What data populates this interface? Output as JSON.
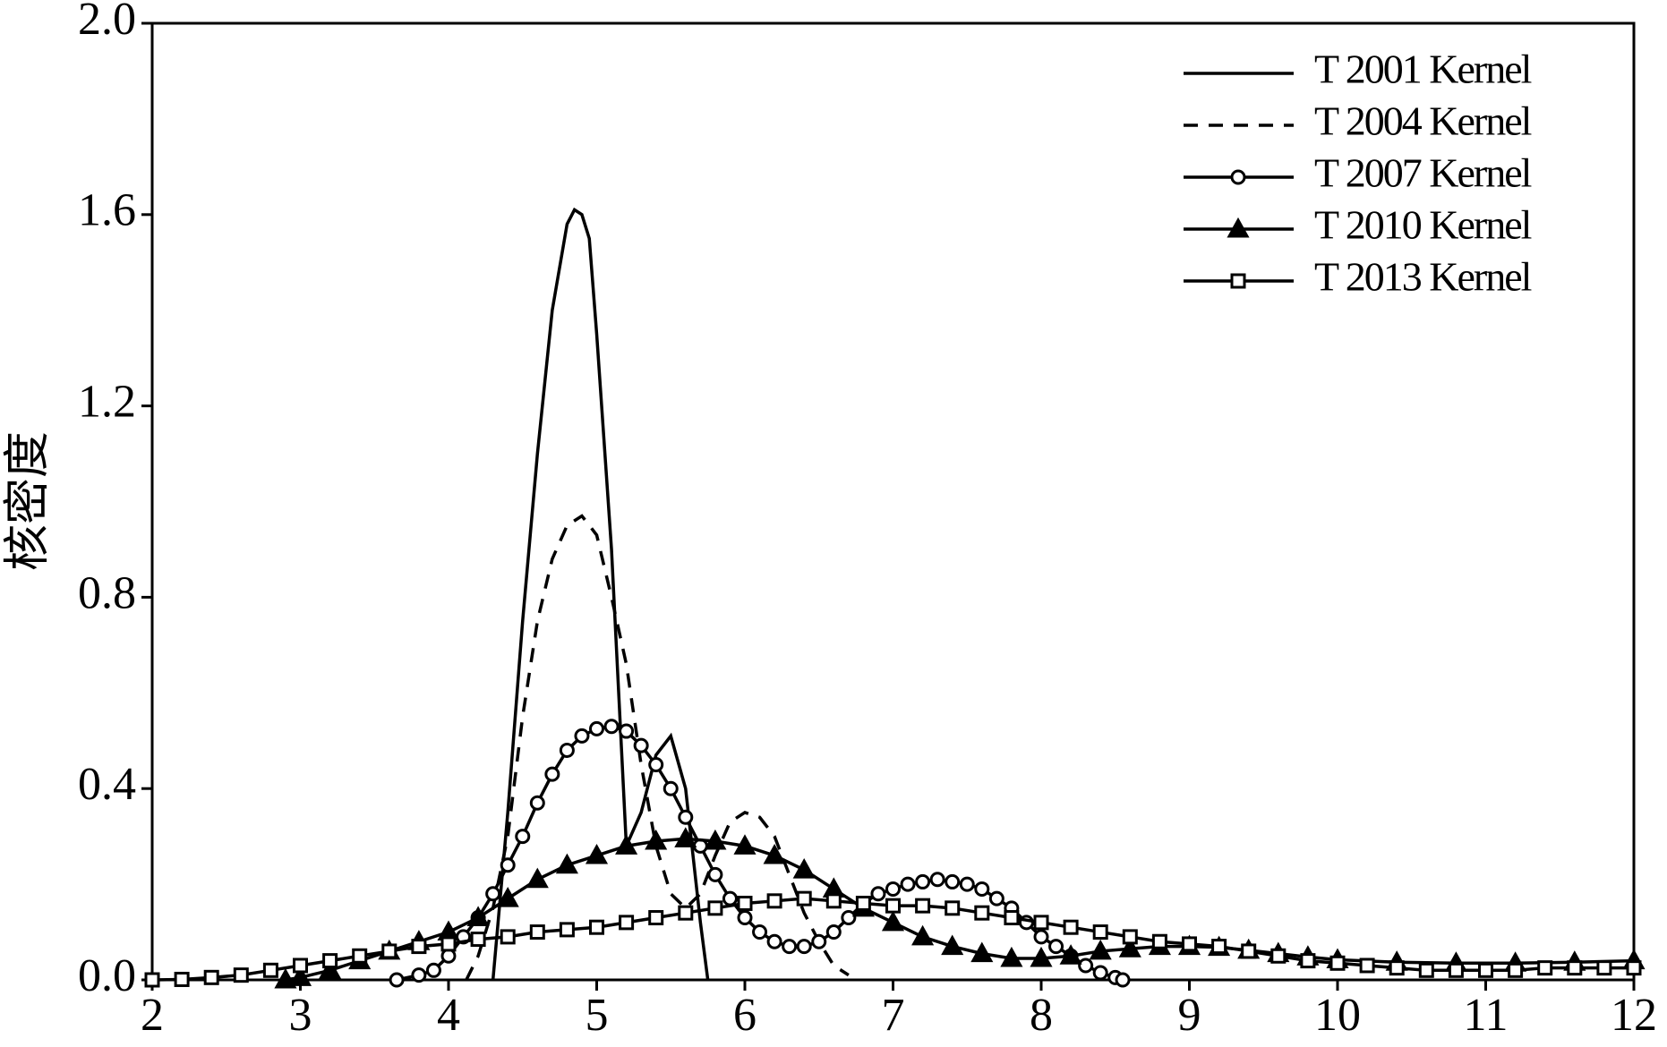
{
  "chart_data": {
    "type": "line",
    "y_label": "核密度",
    "xlim": [
      2,
      12
    ],
    "ylim": [
      0,
      2.0
    ],
    "xticks": [
      2,
      3,
      4,
      5,
      6,
      7,
      8,
      9,
      10,
      11,
      12
    ],
    "yticks": [
      {
        "value": 0,
        "label": "0.0"
      },
      {
        "value": 0.4,
        "label": "0.4"
      },
      {
        "value": 0.8,
        "label": "0.8"
      },
      {
        "value": 1.2,
        "label": "1.2"
      },
      {
        "value": 1.6,
        "label": "1.6"
      },
      {
        "value": 2.0,
        "label": "2.0"
      }
    ],
    "legend": "upper right",
    "series": [
      {
        "name": "T 2001 Kernel",
        "color": "#000000",
        "dash": false,
        "marker": "none",
        "x": [
          4.3,
          4.4,
          4.5,
          4.6,
          4.7,
          4.8,
          4.85,
          4.9,
          4.95,
          5.0,
          5.1,
          5.2,
          5.3,
          5.4,
          5.5,
          5.6,
          5.7,
          5.75
        ],
        "values": [
          0,
          0.35,
          0.75,
          1.1,
          1.4,
          1.58,
          1.61,
          1.6,
          1.55,
          1.35,
          0.9,
          0.28,
          0.35,
          0.47,
          0.51,
          0.4,
          0.12,
          0
        ]
      },
      {
        "name": "T 2004 Kernel",
        "color": "#000000",
        "dash": true,
        "marker": "none",
        "x": [
          4.12,
          4.2,
          4.3,
          4.4,
          4.5,
          4.6,
          4.7,
          4.8,
          4.9,
          5.0,
          5.1,
          5.2,
          5.3,
          5.4,
          5.5,
          5.6,
          5.7,
          5.8,
          5.9,
          6.0,
          6.1,
          6.2,
          6.3,
          6.4,
          6.5,
          6.6,
          6.7
        ],
        "values": [
          0,
          0.05,
          0.15,
          0.3,
          0.55,
          0.75,
          0.88,
          0.95,
          0.97,
          0.93,
          0.8,
          0.66,
          0.45,
          0.28,
          0.18,
          0.15,
          0.18,
          0.26,
          0.33,
          0.35,
          0.34,
          0.3,
          0.22,
          0.14,
          0.08,
          0.03,
          0.01
        ]
      },
      {
        "name": "T 2007 Kernel",
        "color": "#000000",
        "dash": false,
        "marker": "circle",
        "x": [
          3.65,
          3.8,
          3.9,
          4.0,
          4.1,
          4.2,
          4.3,
          4.4,
          4.5,
          4.6,
          4.7,
          4.8,
          4.9,
          5.0,
          5.1,
          5.2,
          5.3,
          5.4,
          5.5,
          5.6,
          5.7,
          5.8,
          5.9,
          6.0,
          6.1,
          6.2,
          6.3,
          6.4,
          6.5,
          6.6,
          6.7,
          6.8,
          6.9,
          7.0,
          7.1,
          7.2,
          7.3,
          7.4,
          7.5,
          7.6,
          7.7,
          7.8,
          7.9,
          8.0,
          8.1,
          8.2,
          8.3,
          8.4,
          8.5,
          8.55
        ],
        "values": [
          0,
          0.01,
          0.02,
          0.05,
          0.09,
          0.13,
          0.18,
          0.24,
          0.3,
          0.37,
          0.43,
          0.48,
          0.51,
          0.525,
          0.53,
          0.52,
          0.49,
          0.45,
          0.4,
          0.34,
          0.28,
          0.22,
          0.17,
          0.13,
          0.1,
          0.08,
          0.07,
          0.07,
          0.08,
          0.1,
          0.13,
          0.16,
          0.18,
          0.19,
          0.2,
          0.205,
          0.21,
          0.205,
          0.2,
          0.19,
          0.17,
          0.15,
          0.12,
          0.09,
          0.07,
          0.05,
          0.03,
          0.015,
          0.005,
          0
        ]
      },
      {
        "name": "T 2010 Kernel",
        "color": "#000000",
        "dash": false,
        "marker": "triangle",
        "x": [
          2.9,
          3.0,
          3.2,
          3.4,
          3.6,
          3.8,
          4.0,
          4.2,
          4.4,
          4.6,
          4.8,
          5.0,
          5.2,
          5.4,
          5.6,
          5.8,
          6.0,
          6.2,
          6.4,
          6.6,
          6.8,
          7.0,
          7.2,
          7.4,
          7.6,
          7.8,
          8.0,
          8.2,
          8.4,
          8.6,
          8.8,
          9.0,
          9.2,
          9.4,
          9.6,
          9.8,
          10.0,
          10.4,
          10.8,
          11.2,
          11.6,
          12.0
        ],
        "values": [
          0,
          0.005,
          0.02,
          0.04,
          0.06,
          0.08,
          0.1,
          0.13,
          0.17,
          0.21,
          0.24,
          0.26,
          0.28,
          0.29,
          0.295,
          0.29,
          0.28,
          0.26,
          0.23,
          0.19,
          0.15,
          0.12,
          0.09,
          0.07,
          0.055,
          0.045,
          0.045,
          0.05,
          0.06,
          0.065,
          0.07,
          0.07,
          0.068,
          0.062,
          0.055,
          0.048,
          0.042,
          0.037,
          0.035,
          0.035,
          0.037,
          0.04
        ]
      },
      {
        "name": "T 2013 Kernel",
        "color": "#000000",
        "dash": false,
        "marker": "square",
        "x": [
          2.0,
          2.2,
          2.4,
          2.6,
          2.8,
          3.0,
          3.2,
          3.4,
          3.6,
          3.8,
          4.0,
          4.2,
          4.4,
          4.6,
          4.8,
          5.0,
          5.2,
          5.4,
          5.6,
          5.8,
          6.0,
          6.2,
          6.4,
          6.6,
          6.8,
          7.0,
          7.2,
          7.4,
          7.6,
          7.8,
          8.0,
          8.2,
          8.4,
          8.6,
          8.8,
          9.0,
          9.2,
          9.4,
          9.6,
          9.8,
          10.0,
          10.2,
          10.4,
          10.6,
          10.8,
          11.0,
          11.2,
          11.4,
          11.6,
          11.8,
          12.0
        ],
        "values": [
          0,
          0.001,
          0.005,
          0.01,
          0.02,
          0.03,
          0.04,
          0.05,
          0.06,
          0.07,
          0.075,
          0.085,
          0.09,
          0.1,
          0.105,
          0.11,
          0.12,
          0.13,
          0.14,
          0.15,
          0.16,
          0.165,
          0.17,
          0.165,
          0.16,
          0.155,
          0.155,
          0.15,
          0.14,
          0.13,
          0.12,
          0.11,
          0.1,
          0.09,
          0.08,
          0.075,
          0.07,
          0.06,
          0.05,
          0.04,
          0.035,
          0.03,
          0.025,
          0.02,
          0.02,
          0.02,
          0.02,
          0.025,
          0.025,
          0.025,
          0.025
        ]
      }
    ]
  }
}
